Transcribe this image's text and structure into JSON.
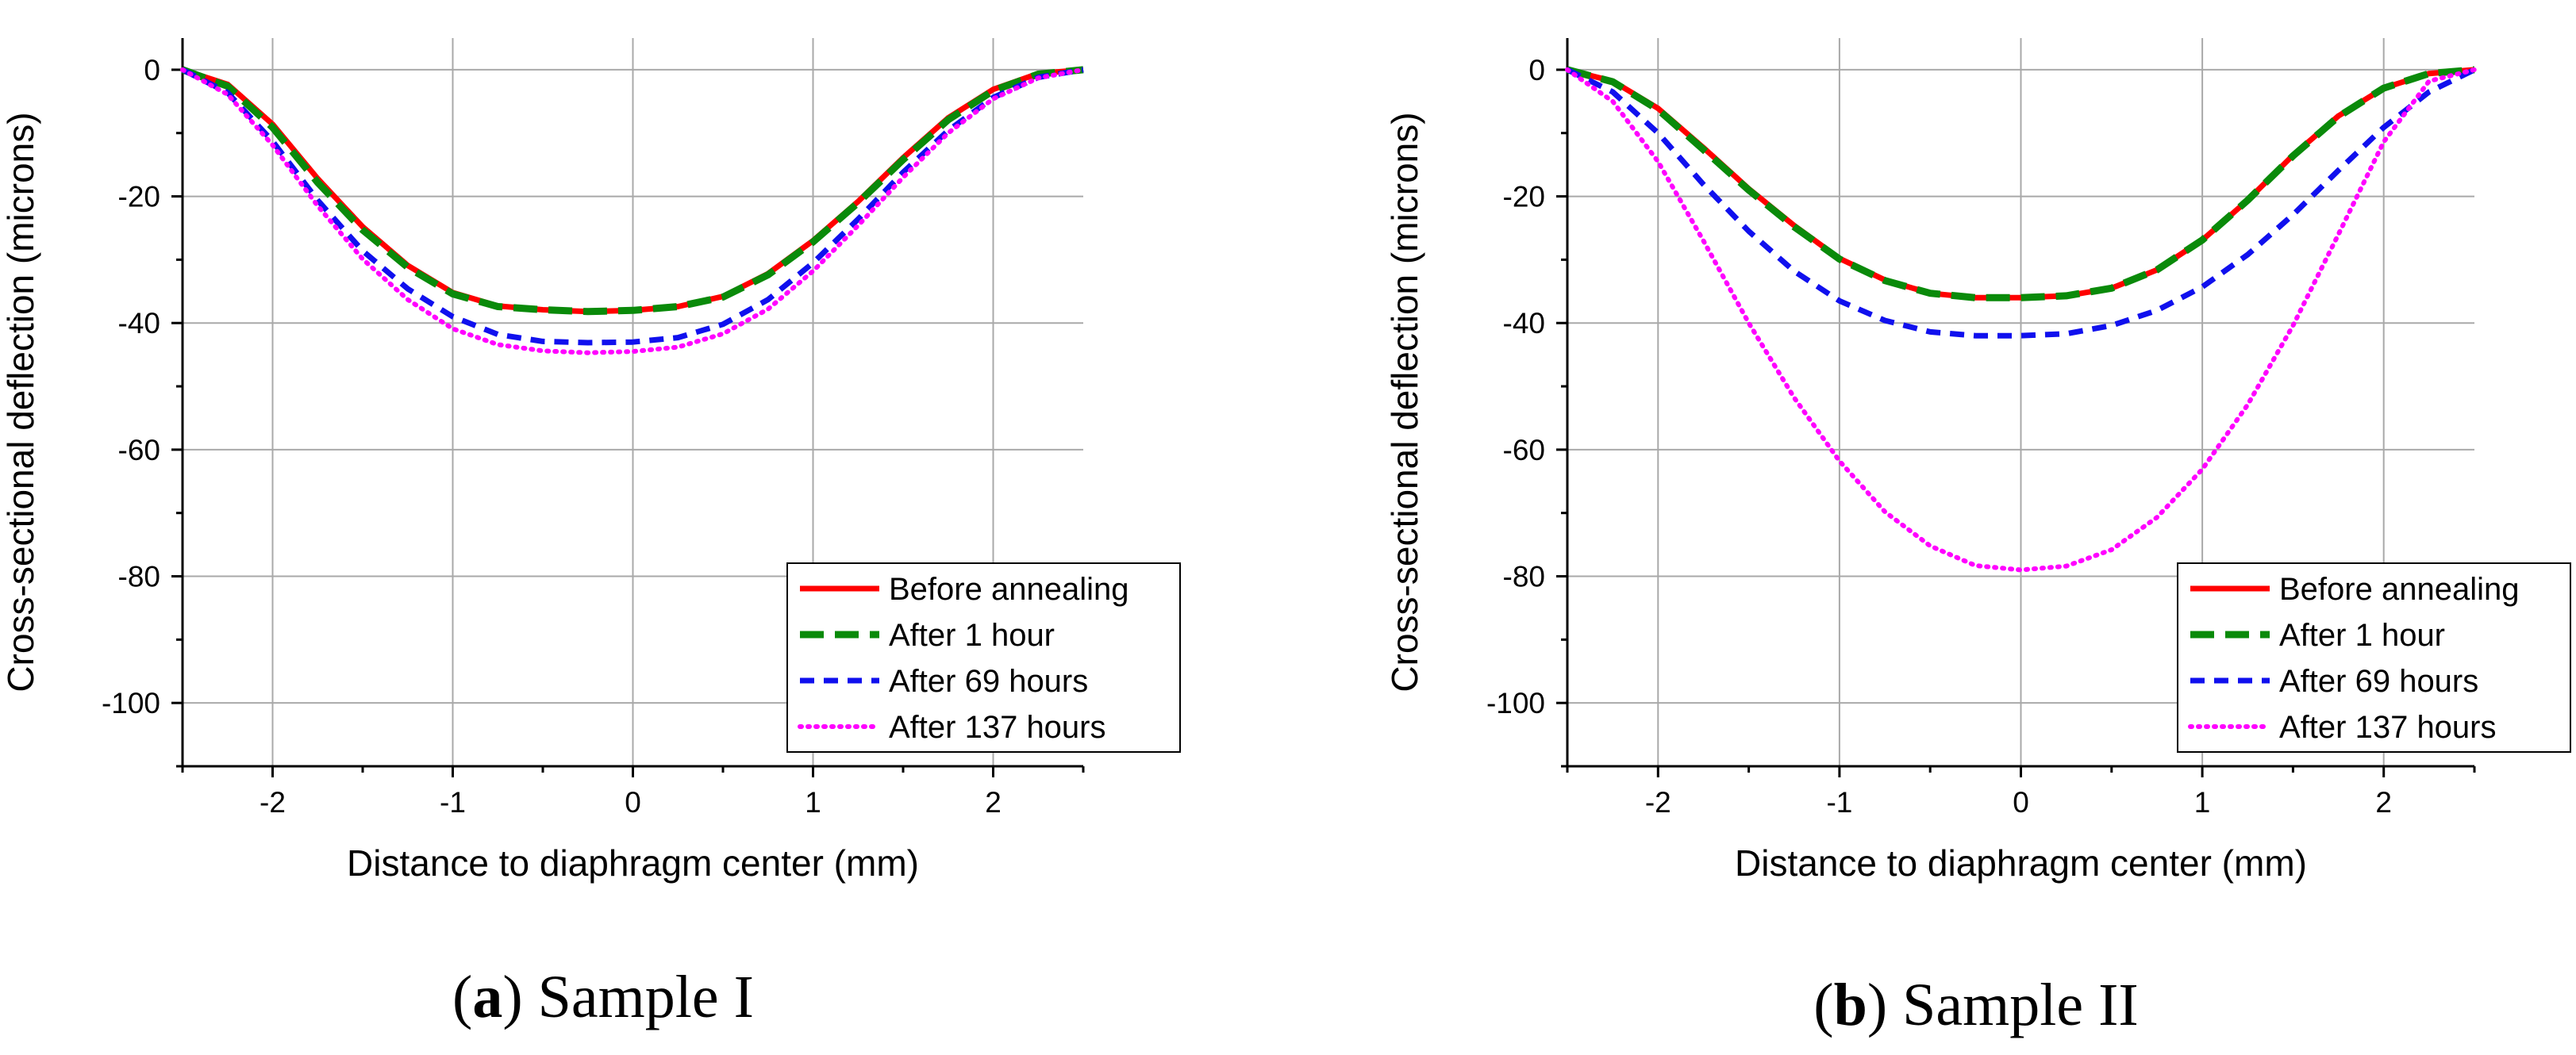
{
  "chart_data": [
    {
      "type": "line",
      "caption_letter": "a",
      "caption_rest": ") Sample I",
      "xlabel": "Distance to diaphragm center (mm)",
      "ylabel": "Cross-sectional deflection (microns)",
      "xlim": [
        -2.5,
        2.5
      ],
      "ylim": [
        -110,
        5
      ],
      "xticks": [
        -2,
        -1,
        0,
        1,
        2
      ],
      "xtick_labels": [
        "-2",
        "-1",
        "0",
        "1",
        "2"
      ],
      "yticks": [
        0,
        -20,
        -40,
        -60,
        -80,
        -100
      ],
      "ytick_labels": [
        "0",
        "-20",
        "-40",
        "-60",
        "-80",
        "-100"
      ],
      "grid": true,
      "legend_position": "bottom-right",
      "series": [
        {
          "name": "Before annealing",
          "color": "#ff0000",
          "style": "solid",
          "x": [
            -2.5,
            -2.25,
            -2,
            -1.75,
            -1.5,
            -1.25,
            -1,
            -0.75,
            -0.5,
            -0.25,
            0,
            0.25,
            0.5,
            0.75,
            1,
            1.25,
            1.5,
            1.75,
            2,
            2.25,
            2.5
          ],
          "y": [
            0,
            -2.3,
            -8.6,
            -17.2,
            -24.8,
            -30.9,
            -35.2,
            -37.3,
            -37.9,
            -38.2,
            -38.0,
            -37.4,
            -35.8,
            -32.2,
            -27.0,
            -20.8,
            -13.9,
            -7.6,
            -3.1,
            -0.6,
            0
          ]
        },
        {
          "name": "After 1 hour",
          "color": "#0a8a0a",
          "style": "dashed",
          "x": [
            -2.5,
            -2.25,
            -2,
            -1.75,
            -1.5,
            -1.25,
            -1,
            -0.75,
            -0.5,
            -0.25,
            0,
            0.25,
            0.5,
            0.75,
            1,
            1.25,
            1.5,
            1.75,
            2,
            2.25,
            2.5
          ],
          "y": [
            0,
            -2.6,
            -9.1,
            -17.8,
            -25.3,
            -31.2,
            -35.4,
            -37.4,
            -37.9,
            -38.2,
            -38.0,
            -37.4,
            -35.9,
            -32.4,
            -27.2,
            -21.0,
            -14.2,
            -7.9,
            -3.3,
            -0.7,
            0
          ]
        },
        {
          "name": "After 69 hours",
          "color": "#1010ee",
          "style": "dashed",
          "x": [
            -2.5,
            -2.25,
            -2,
            -1.75,
            -1.5,
            -1.25,
            -1,
            -0.75,
            -0.5,
            -0.25,
            0,
            0.25,
            0.5,
            0.75,
            1,
            1.25,
            1.5,
            1.75,
            2,
            2.25,
            2.5
          ],
          "y": [
            0,
            -3.6,
            -11.3,
            -20.6,
            -28.6,
            -34.6,
            -39.0,
            -41.8,
            -42.9,
            -43.1,
            -43.0,
            -42.3,
            -40.2,
            -36.3,
            -30.5,
            -23.6,
            -16.2,
            -9.6,
            -4.4,
            -1.2,
            0
          ]
        },
        {
          "name": "After 137 hours",
          "color": "#ff00ff",
          "style": "dotted",
          "x": [
            -2.5,
            -2.25,
            -2,
            -1.75,
            -1.5,
            -1.25,
            -1,
            -0.75,
            -0.5,
            -0.25,
            0,
            0.25,
            0.5,
            0.75,
            1,
            1.25,
            1.5,
            1.75,
            2,
            2.25,
            2.5
          ],
          "y": [
            0,
            -3.9,
            -11.9,
            -21.5,
            -29.9,
            -36.3,
            -40.9,
            -43.4,
            -44.4,
            -44.7,
            -44.5,
            -43.8,
            -41.7,
            -37.8,
            -31.8,
            -24.6,
            -17.0,
            -10.0,
            -4.6,
            -1.3,
            0
          ]
        }
      ]
    },
    {
      "type": "line",
      "caption_letter": "b",
      "caption_rest": ") Sample II",
      "xlabel": "Distance to diaphragm center (mm)",
      "ylabel": "Cross-sectional deflection (microns)",
      "xlim": [
        -2.5,
        2.5
      ],
      "ylim": [
        -110,
        5
      ],
      "xticks": [
        -2,
        -1,
        0,
        1,
        2
      ],
      "xtick_labels": [
        "-2",
        "-1",
        "0",
        "1",
        "2"
      ],
      "yticks": [
        0,
        -20,
        -40,
        -60,
        -80,
        -100
      ],
      "ytick_labels": [
        "0",
        "-20",
        "-40",
        "-60",
        "-80",
        "-100"
      ],
      "grid": true,
      "legend_position": "bottom-right",
      "series": [
        {
          "name": "Before annealing",
          "color": "#ff0000",
          "style": "solid",
          "x": [
            -2.5,
            -2.25,
            -2,
            -1.75,
            -1.5,
            -1.25,
            -1,
            -0.75,
            -0.5,
            -0.25,
            0,
            0.25,
            0.5,
            0.75,
            1,
            1.25,
            1.5,
            1.75,
            2,
            2.25,
            2.5
          ],
          "y": [
            0,
            -1.8,
            -6.1,
            -12.3,
            -18.8,
            -24.6,
            -29.8,
            -33.2,
            -35.3,
            -36.0,
            -36.0,
            -35.7,
            -34.5,
            -31.6,
            -26.9,
            -20.6,
            -13.5,
            -7.3,
            -2.9,
            -0.6,
            0
          ]
        },
        {
          "name": "After 1 hour",
          "color": "#0a8a0a",
          "style": "dashed",
          "x": [
            -2.5,
            -2.25,
            -2,
            -1.75,
            -1.5,
            -1.25,
            -1,
            -0.75,
            -0.5,
            -0.25,
            0,
            0.25,
            0.5,
            0.75,
            1,
            1.25,
            1.5,
            1.75,
            2,
            2.25,
            2.5
          ],
          "y": [
            0,
            -1.9,
            -6.3,
            -12.6,
            -19.0,
            -24.8,
            -29.9,
            -33.3,
            -35.3,
            -36.0,
            -36.0,
            -35.7,
            -34.5,
            -31.6,
            -26.9,
            -20.6,
            -13.6,
            -7.4,
            -2.9,
            -0.6,
            0
          ]
        },
        {
          "name": "After 69 hours",
          "color": "#1010ee",
          "style": "dashed",
          "x": [
            -2.5,
            -2.25,
            -2,
            -1.75,
            -1.5,
            -1.25,
            -1,
            -0.75,
            -0.5,
            -0.25,
            0,
            0.25,
            0.5,
            0.75,
            1,
            1.25,
            1.5,
            1.75,
            2,
            2.25,
            2.5
          ],
          "y": [
            0,
            -3.5,
            -10.0,
            -18.1,
            -25.5,
            -31.8,
            -36.5,
            -39.6,
            -41.4,
            -42.0,
            -42.0,
            -41.7,
            -40.4,
            -38.0,
            -34.3,
            -29.2,
            -22.9,
            -15.9,
            -9.1,
            -3.5,
            0
          ]
        },
        {
          "name": "After 137 hours",
          "color": "#ff00ff",
          "style": "dotted",
          "x": [
            -2.5,
            -2.25,
            -2,
            -1.75,
            -1.5,
            -1.25,
            -1,
            -0.75,
            -0.5,
            -0.25,
            0,
            0.25,
            0.5,
            0.75,
            1,
            1.25,
            1.5,
            1.75,
            2,
            2.25,
            2.5
          ],
          "y": [
            0,
            -5.0,
            -14.5,
            -27.0,
            -40.0,
            -51.8,
            -61.8,
            -69.8,
            -75.2,
            -78.3,
            -79.0,
            -78.4,
            -75.8,
            -70.7,
            -63.1,
            -52.9,
            -40.4,
            -26.0,
            -11.4,
            -1.8,
            0
          ]
        }
      ]
    }
  ]
}
